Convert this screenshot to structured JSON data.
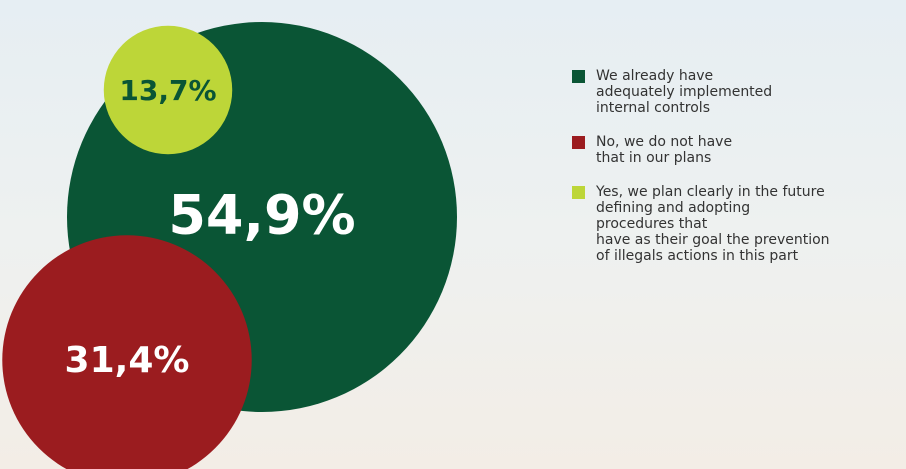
{
  "chart_data": {
    "type": "circles",
    "series": [
      {
        "name": "We already have\nadequately implemented\ninternal controls",
        "color": "#0a5535",
        "values": [
          54.9
        ],
        "value_labels": [
          "54,9%"
        ]
      },
      {
        "name": "No, we do not have\nthat in our plans",
        "color": "#9b1c1f",
        "values": [
          31.4
        ],
        "value_labels": [
          "31,4%"
        ]
      },
      {
        "name": "Yes, we plan clearly in the future\ndefining and adopting\nprocedures that\nhave as their goal the prevention\nof illegals actions in this part",
        "color": "#bdd638",
        "values": [
          13.7
        ],
        "value_labels": [
          "13,7%"
        ]
      }
    ],
    "legend": "right"
  }
}
